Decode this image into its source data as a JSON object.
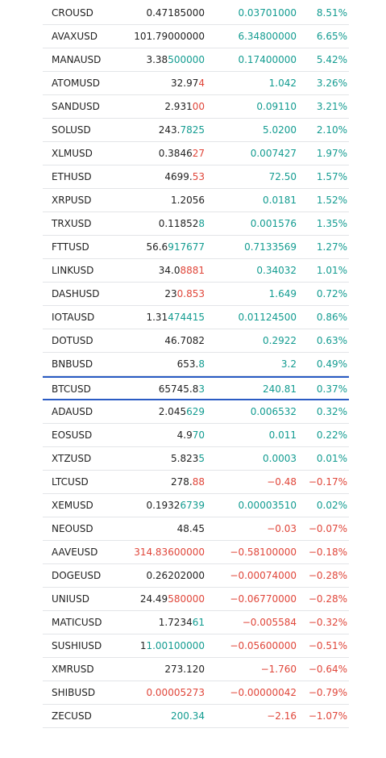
{
  "colors": {
    "positive": "#139c91",
    "negative": "#e0463a",
    "text": "#222222",
    "highlight_border": "#2a5bc4"
  },
  "selected_symbol": "BTCUSD",
  "rows": [
    {
      "symbol": "CROUSD",
      "last_plain": "0.47185000",
      "last_tail": "",
      "last_tail_dir": "pos",
      "change": "0.03701000",
      "change_pct": "8.51%",
      "dir": "pos"
    },
    {
      "symbol": "AVAXUSD",
      "last_plain": "101.79000000",
      "last_tail": "",
      "last_tail_dir": "pos",
      "change": "6.34800000",
      "change_pct": "6.65%",
      "dir": "pos"
    },
    {
      "symbol": "MANAUSD",
      "last_plain": "3.38",
      "last_tail": "500000",
      "last_tail_dir": "pos",
      "change": "0.17400000",
      "change_pct": "5.42%",
      "dir": "pos"
    },
    {
      "symbol": "ATOMUSD",
      "last_plain": "32.97",
      "last_tail": "4",
      "last_tail_dir": "neg",
      "change": "1.042",
      "change_pct": "3.26%",
      "dir": "pos"
    },
    {
      "symbol": "SANDUSD",
      "last_plain": "2.931",
      "last_tail": "00",
      "last_tail_dir": "neg",
      "change": "0.09110",
      "change_pct": "3.21%",
      "dir": "pos"
    },
    {
      "symbol": "SOLUSD",
      "last_plain": "243.",
      "last_tail": "7825",
      "last_tail_dir": "pos",
      "change": "5.0200",
      "change_pct": "2.10%",
      "dir": "pos"
    },
    {
      "symbol": "XLMUSD",
      "last_plain": "0.3846",
      "last_tail": "27",
      "last_tail_dir": "neg",
      "change": "0.007427",
      "change_pct": "1.97%",
      "dir": "pos"
    },
    {
      "symbol": "ETHUSD",
      "last_plain": "4699.",
      "last_tail": "53",
      "last_tail_dir": "neg",
      "change": "72.50",
      "change_pct": "1.57%",
      "dir": "pos"
    },
    {
      "symbol": "XRPUSD",
      "last_plain": "1.2056",
      "last_tail": "",
      "last_tail_dir": "pos",
      "change": "0.0181",
      "change_pct": "1.52%",
      "dir": "pos"
    },
    {
      "symbol": "TRXUSD",
      "last_plain": "0.11852",
      "last_tail": "8",
      "last_tail_dir": "pos",
      "change": "0.001576",
      "change_pct": "1.35%",
      "dir": "pos"
    },
    {
      "symbol": "FTTUSD",
      "last_plain": "56.6",
      "last_tail": "917677",
      "last_tail_dir": "pos",
      "change": "0.7133569",
      "change_pct": "1.27%",
      "dir": "pos"
    },
    {
      "symbol": "LINKUSD",
      "last_plain": "34.0",
      "last_tail": "8881",
      "last_tail_dir": "neg",
      "change": "0.34032",
      "change_pct": "1.01%",
      "dir": "pos"
    },
    {
      "symbol": "DASHUSD",
      "last_plain": "23",
      "last_tail": "0.853",
      "last_tail_dir": "neg",
      "change": "1.649",
      "change_pct": "0.72%",
      "dir": "pos"
    },
    {
      "symbol": "IOTAUSD",
      "last_plain": "1.31",
      "last_tail": "474415",
      "last_tail_dir": "pos",
      "change": "0.01124500",
      "change_pct": "0.86%",
      "dir": "pos"
    },
    {
      "symbol": "DOTUSD",
      "last_plain": "46.7082",
      "last_tail": "",
      "last_tail_dir": "pos",
      "change": "0.2922",
      "change_pct": "0.63%",
      "dir": "pos"
    },
    {
      "symbol": "BNBUSD",
      "last_plain": "653.",
      "last_tail": "8",
      "last_tail_dir": "pos",
      "change": "3.2",
      "change_pct": "0.49%",
      "dir": "pos"
    },
    {
      "symbol": "BTCUSD",
      "last_plain": "65745.8",
      "last_tail": "3",
      "last_tail_dir": "pos",
      "change": "240.81",
      "change_pct": "0.37%",
      "dir": "pos"
    },
    {
      "symbol": "ADAUSD",
      "last_plain": "2.045",
      "last_tail": "629",
      "last_tail_dir": "pos",
      "change": "0.006532",
      "change_pct": "0.32%",
      "dir": "pos"
    },
    {
      "symbol": "EOSUSD",
      "last_plain": "4.9",
      "last_tail": "70",
      "last_tail_dir": "pos",
      "change": "0.011",
      "change_pct": "0.22%",
      "dir": "pos"
    },
    {
      "symbol": "XTZUSD",
      "last_plain": "5.823",
      "last_tail": "5",
      "last_tail_dir": "pos",
      "change": "0.0003",
      "change_pct": "0.01%",
      "dir": "pos"
    },
    {
      "symbol": "LTCUSD",
      "last_plain": "278.",
      "last_tail": "88",
      "last_tail_dir": "neg",
      "change": "−0.48",
      "change_pct": "−0.17%",
      "dir": "neg"
    },
    {
      "symbol": "XEMUSD",
      "last_plain": "0.1932",
      "last_tail": "6739",
      "last_tail_dir": "pos",
      "change": "0.00003510",
      "change_pct": "0.02%",
      "dir": "pos"
    },
    {
      "symbol": "NEOUSD",
      "last_plain": "48.45",
      "last_tail": "",
      "last_tail_dir": "neg",
      "change": "−0.03",
      "change_pct": "−0.07%",
      "dir": "neg"
    },
    {
      "symbol": "AAVEUSD",
      "last_plain": "",
      "last_tail": "314.83600000",
      "last_tail_dir": "neg",
      "change": "−0.58100000",
      "change_pct": "−0.18%",
      "dir": "neg"
    },
    {
      "symbol": "DOGEUSD",
      "last_plain": "0.26202000",
      "last_tail": "",
      "last_tail_dir": "neg",
      "change": "−0.00074000",
      "change_pct": "−0.28%",
      "dir": "neg"
    },
    {
      "symbol": "UNIUSD",
      "last_plain": "24.49",
      "last_tail": "580000",
      "last_tail_dir": "neg",
      "change": "−0.06770000",
      "change_pct": "−0.28%",
      "dir": "neg"
    },
    {
      "symbol": "MATICUSD",
      "last_plain": "1.7234",
      "last_tail": "61",
      "last_tail_dir": "pos",
      "change": "−0.005584",
      "change_pct": "−0.32%",
      "dir": "neg"
    },
    {
      "symbol": "SUSHIUSD",
      "last_plain": "1",
      "last_tail": "1.00100000",
      "last_tail_dir": "pos",
      "change": "−0.05600000",
      "change_pct": "−0.51%",
      "dir": "neg"
    },
    {
      "symbol": "XMRUSD",
      "last_plain": "273.120",
      "last_tail": "",
      "last_tail_dir": "pos",
      "change": "−1.760",
      "change_pct": "−0.64%",
      "dir": "neg"
    },
    {
      "symbol": "SHIBUSD",
      "last_plain": "",
      "last_tail": "0.00005273",
      "last_tail_dir": "neg",
      "change": "−0.00000042",
      "change_pct": "−0.79%",
      "dir": "neg"
    },
    {
      "symbol": "ZECUSD",
      "last_plain": "",
      "last_tail": "200.34",
      "last_tail_dir": "pos",
      "change": "−2.16",
      "change_pct": "−1.07%",
      "dir": "neg"
    }
  ]
}
